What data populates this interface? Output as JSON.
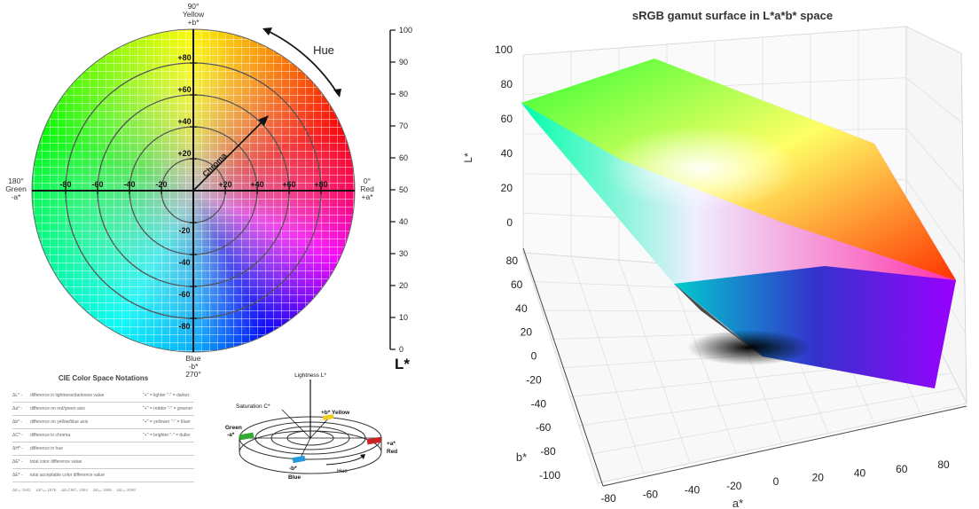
{
  "left_wheel": {
    "top_label": [
      "90°",
      "Yellow",
      "+b*"
    ],
    "bottom_label": [
      "Blue",
      "-b*",
      "270°"
    ],
    "left_label": [
      "180°",
      "Green",
      "-a*"
    ],
    "right_label": [
      "0°",
      "Red",
      "+a*"
    ],
    "hue_label": "Hue",
    "chroma_label": "Chroma",
    "a_ticks": [
      "-80",
      "-60",
      "-40",
      "-20",
      "+20",
      "+40",
      "+60",
      "+80"
    ],
    "b_ticks_pos": [
      "+80",
      "+60",
      "+40",
      "+20"
    ],
    "b_ticks_neg": [
      "-20",
      "-40",
      "-60",
      "-80"
    ],
    "lightness_scale": [
      "100",
      "90",
      "80",
      "70",
      "60",
      "50",
      "40",
      "30",
      "20",
      "10",
      "0"
    ],
    "lightness_label": "L*"
  },
  "notations": {
    "title": "CIE Color Space Notations",
    "rows": [
      {
        "sym": "ΔL* -",
        "desc": "difference in lightness/darkness value",
        "hint": "\"+\" = lighter \"-\" = darker"
      },
      {
        "sym": "Δa* -",
        "desc": "difference on red/green axis",
        "hint": "\"+\" = redder \"-\" = greener"
      },
      {
        "sym": "Δb* -",
        "desc": "difference on yellow/blue axis",
        "hint": "\"+\" = yellower \"-\" = bluer"
      },
      {
        "sym": "ΔC* -",
        "desc": "difference in chroma",
        "hint": "\"+\" = brighter \"-\" = duller"
      },
      {
        "sym": "ΔH* -",
        "desc": "difference in hue",
        "hint": ""
      },
      {
        "sym": "ΔE* -",
        "desc": "total color difference value",
        "hint": ""
      },
      {
        "sym": "ΔE* -",
        "desc": "total acceptable color difference value",
        "hint": ""
      }
    ],
    "footer": [
      "ΔE₇₆ 1942",
      "ΔE*₉₄ 1976",
      "ΔE₍CMC₎ 1984",
      "ΔE₉₄ 1995",
      "ΔE₀₀ 2000"
    ]
  },
  "small_diagram": {
    "lightness": "Lightness L*",
    "saturation": "Saturation C*",
    "yellow": "+b* Yellow",
    "green": [
      "Green",
      "-a*"
    ],
    "red": [
      "+a*",
      "Red"
    ],
    "blue": [
      "-b*",
      "Blue"
    ],
    "hue": "Hue"
  },
  "chart_3d": {
    "title": "sRGB gamut surface in L*a*b* space",
    "l_axis_label": "L*",
    "l_ticks": [
      "100",
      "80",
      "60",
      "40",
      "20",
      "0"
    ],
    "b_axis_label": "b*",
    "b_ticks": [
      "80",
      "60",
      "40",
      "20",
      "0",
      "-20",
      "-40",
      "-60",
      "-80",
      "-100"
    ],
    "a_axis_label": "a*",
    "a_ticks": [
      "-80",
      "-60",
      "-40",
      "-20",
      "0",
      "20",
      "40",
      "60",
      "80"
    ]
  }
}
